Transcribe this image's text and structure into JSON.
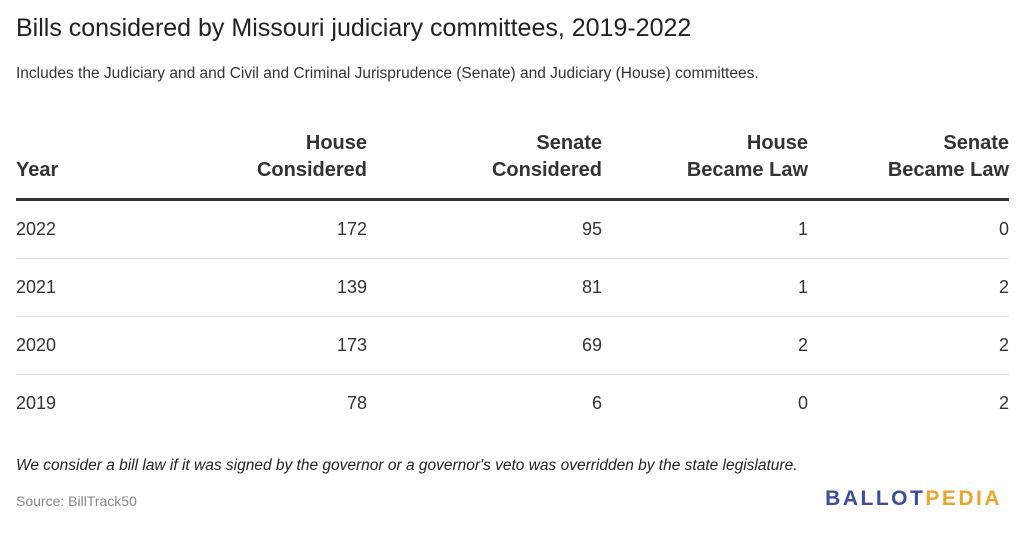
{
  "title": "Bills considered by Missouri judiciary committees, 2019-2022",
  "subtitle": "Includes the Judiciary and and Civil and Criminal Jurisprudence (Senate) and Judiciary (House) committees.",
  "chart_data": {
    "type": "table",
    "columns": [
      [
        "Year"
      ],
      [
        "House",
        "Considered"
      ],
      [
        "Senate",
        "Considered"
      ],
      [
        "House",
        "Became Law"
      ],
      [
        "Senate",
        "Became Law"
      ]
    ],
    "rows": [
      [
        "2022",
        "172",
        "95",
        "1",
        "0"
      ],
      [
        "2021",
        "139",
        "81",
        "1",
        "2"
      ],
      [
        "2020",
        "173",
        "69",
        "2",
        "2"
      ],
      [
        "2019",
        "78",
        "6",
        "0",
        "2"
      ]
    ]
  },
  "note": "We consider a bill law if it was signed by the governor or a governor's veto was overridden by the state legislature.",
  "source": "Source: BillTrack50",
  "logo": {
    "part1": "BALLOT",
    "part2": "PEDIA",
    "colors": {
      "part1": "#3b4d9e",
      "part2": "#e8a62c"
    }
  }
}
